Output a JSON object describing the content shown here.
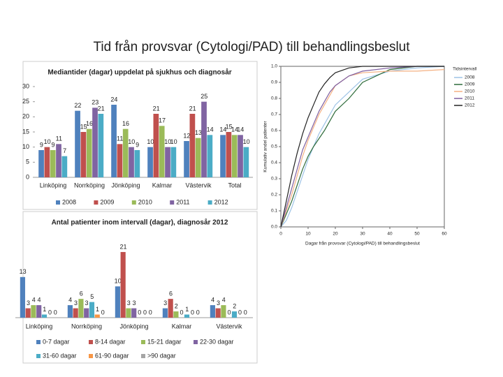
{
  "title": "Tid från provsvar (Cytologi/PAD) till behandlingsbeslut",
  "chart_data": [
    {
      "type": "bar",
      "title": "Mediantider (dagar) uppdelat på sjukhus och diagnosår",
      "categories": [
        "Linköping",
        "Norrköping",
        "Jönköping",
        "Kalmar",
        "Västervik",
        "Total"
      ],
      "series": [
        {
          "name": "2008",
          "color": "#4f81bd",
          "values": [
            9,
            22,
            24,
            10,
            12,
            14
          ]
        },
        {
          "name": "2009",
          "color": "#c0504d",
          "values": [
            10,
            15,
            11,
            21,
            21,
            15
          ]
        },
        {
          "name": "2010",
          "color": "#9bbb59",
          "values": [
            9,
            16,
            16,
            17,
            13,
            14
          ]
        },
        {
          "name": "2011",
          "color": "#8064a2",
          "values": [
            11,
            23,
            10,
            10,
            25,
            14
          ]
        },
        {
          "name": "2012",
          "color": "#4bacc6",
          "values": [
            7,
            21,
            9,
            10,
            14,
            10
          ]
        }
      ],
      "ylim": [
        0,
        30
      ],
      "yticks": [
        0,
        5,
        10,
        15,
        20,
        25,
        30
      ],
      "data_labels": true,
      "legend": "bottom"
    },
    {
      "type": "bar",
      "title": "Antal patienter inom intervall (dagar), diagnosår 2012",
      "categories": [
        "Linköping",
        "Norrköping",
        "Jönköping",
        "Kalmar",
        "Västervik"
      ],
      "series": [
        {
          "name": "0-7 dagar",
          "color": "#4f81bd",
          "values": [
            13,
            4,
            10,
            3,
            4
          ]
        },
        {
          "name": "8-14 dagar",
          "color": "#c0504d",
          "values": [
            3,
            3,
            21,
            6,
            3
          ]
        },
        {
          "name": "15-21 dagar",
          "color": "#9bbb59",
          "values": [
            4,
            6,
            3,
            2,
            4
          ]
        },
        {
          "name": "22-30 dagar",
          "color": "#8064a2",
          "values": [
            4,
            3,
            3,
            0,
            0
          ]
        },
        {
          "name": "31-60 dagar",
          "color": "#4bacc6",
          "values": [
            1,
            5,
            0,
            1,
            2
          ]
        },
        {
          "name": "61-90 dagar",
          "color": "#f79646",
          "values": [
            0,
            1,
            0,
            0,
            0
          ]
        },
        {
          "name": ">90 dagar",
          "color": "#a5a5a5",
          "values": [
            0,
            0,
            0,
            0,
            0
          ]
        }
      ],
      "ylim": [
        0,
        23
      ],
      "data_labels": true,
      "legend": "bottom"
    },
    {
      "type": "line",
      "x_label": "Dagar från provsvar (Cytologi/PAD) till behandlingsbeslut",
      "y_label": "Kumulativ andel patienter",
      "legend_title": "Tidsintervall",
      "series": [
        {
          "name": "2008",
          "color": "#9dc3e6",
          "x": [
            0,
            2,
            4,
            6,
            8,
            10,
            12,
            14,
            16,
            18,
            20,
            25,
            30,
            40,
            50,
            60
          ],
          "values": [
            0,
            0.04,
            0.12,
            0.22,
            0.32,
            0.42,
            0.5,
            0.58,
            0.64,
            0.7,
            0.76,
            0.84,
            0.92,
            0.97,
            0.99,
            1
          ]
        },
        {
          "name": "2009",
          "color": "#2e6b3a",
          "x": [
            0,
            2,
            4,
            6,
            8,
            10,
            12,
            14,
            16,
            18,
            20,
            25,
            30,
            40,
            50,
            60
          ],
          "values": [
            0,
            0.08,
            0.16,
            0.26,
            0.36,
            0.44,
            0.5,
            0.55,
            0.6,
            0.66,
            0.72,
            0.8,
            0.9,
            0.98,
            1,
            1
          ]
        },
        {
          "name": "2010",
          "color": "#f4b183",
          "x": [
            0,
            2,
            4,
            6,
            8,
            10,
            12,
            14,
            16,
            18,
            20,
            25,
            30,
            40,
            50,
            60
          ],
          "values": [
            0,
            0.1,
            0.2,
            0.32,
            0.44,
            0.54,
            0.62,
            0.7,
            0.76,
            0.82,
            0.88,
            0.94,
            0.96,
            0.97,
            0.97,
            0.98
          ]
        },
        {
          "name": "2011",
          "color": "#7f5fa0",
          "x": [
            0,
            2,
            4,
            6,
            8,
            10,
            12,
            14,
            16,
            18,
            20,
            25,
            30,
            40,
            50,
            60
          ],
          "values": [
            0,
            0.12,
            0.24,
            0.36,
            0.48,
            0.56,
            0.64,
            0.72,
            0.78,
            0.84,
            0.88,
            0.94,
            0.97,
            0.99,
            1,
            1
          ]
        },
        {
          "name": "2012",
          "color": "#222222",
          "x": [
            0,
            2,
            4,
            6,
            8,
            10,
            12,
            14,
            16,
            18,
            20,
            25,
            30,
            40,
            50,
            60
          ],
          "values": [
            0,
            0.16,
            0.32,
            0.46,
            0.58,
            0.68,
            0.76,
            0.84,
            0.89,
            0.93,
            0.96,
            0.99,
            1,
            1,
            1,
            1
          ]
        }
      ],
      "xlim": [
        0,
        60
      ],
      "xticks": [
        0,
        10,
        20,
        30,
        40,
        50,
        60
      ],
      "ylim": [
        0,
        1
      ],
      "yticks": [
        {
          "value": 0,
          "label": "0.0"
        },
        0.1,
        0.2,
        0.3,
        0.4,
        0.5,
        0.6,
        0.7,
        0.8,
        0.9,
        {
          "value": 1,
          "label": "1.0"
        }
      ],
      "legend": "right"
    }
  ]
}
